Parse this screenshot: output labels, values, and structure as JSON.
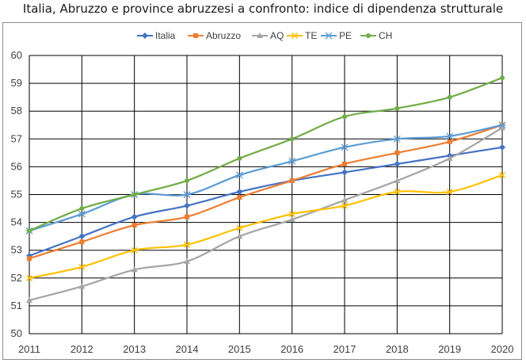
{
  "chart_data": {
    "type": "line",
    "title": "Italia, Abruzzo e province abruzzesi a confronto: indice di dipendenza strutturale",
    "xlabel": "",
    "ylabel": "",
    "x": [
      "2011",
      "2012",
      "2013",
      "2014",
      "2015",
      "2016",
      "2017",
      "2018",
      "2019",
      "2020"
    ],
    "ylim": [
      50,
      60
    ],
    "yticks": [
      "50",
      "51",
      "52",
      "53",
      "54",
      "55",
      "56",
      "57",
      "58",
      "59",
      "60"
    ],
    "grid": true,
    "legend_position": "top",
    "series": [
      {
        "name": "Italia",
        "color": "#4472C4",
        "marker": "diamond",
        "values": [
          52.8,
          53.5,
          54.2,
          54.6,
          55.1,
          55.5,
          55.8,
          56.1,
          56.4,
          56.7
        ]
      },
      {
        "name": "Abruzzo",
        "color": "#ED7D31",
        "marker": "square",
        "values": [
          52.7,
          53.3,
          53.9,
          54.2,
          54.9,
          55.5,
          56.1,
          56.5,
          56.9,
          57.5
        ]
      },
      {
        "name": "AQ",
        "color": "#A5A5A5",
        "marker": "triangle",
        "values": [
          51.2,
          51.7,
          52.3,
          52.6,
          53.5,
          54.1,
          54.8,
          55.5,
          56.3,
          57.4
        ]
      },
      {
        "name": "TE",
        "color": "#FFC000",
        "marker": "x",
        "values": [
          52.0,
          52.4,
          53.0,
          53.2,
          53.8,
          54.3,
          54.6,
          55.1,
          55.1,
          55.7
        ]
      },
      {
        "name": "PE",
        "color": "#5B9BD5",
        "marker": "star",
        "values": [
          53.7,
          54.3,
          55.0,
          55.0,
          55.7,
          56.2,
          56.7,
          57.0,
          57.1,
          57.5
        ]
      },
      {
        "name": "CH",
        "color": "#70AD47",
        "marker": "circle",
        "values": [
          53.7,
          54.5,
          55.0,
          55.5,
          56.3,
          57.0,
          57.8,
          58.1,
          58.5,
          59.2
        ]
      }
    ]
  }
}
